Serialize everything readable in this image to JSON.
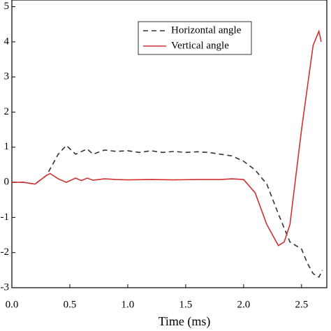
{
  "chart_data": {
    "type": "line",
    "xlabel": "Time (ms)",
    "xlim": [
      0,
      2.7
    ],
    "ylim": [
      -3,
      5.25
    ],
    "xticks": [
      {
        "value": 0,
        "label": "0.0"
      },
      0.5,
      {
        "value": 1,
        "label": "1.0"
      },
      1.5,
      {
        "value": 2,
        "label": "2.0"
      },
      2.5
    ],
    "yticks": [
      -3,
      -2,
      -1,
      0,
      1,
      2,
      3,
      4,
      5
    ],
    "series": [
      {
        "name": "Horizontal angle",
        "color": "#333333",
        "dash": true,
        "x": [
          0,
          0.1,
          0.2,
          0.3,
          0.4,
          0.47,
          0.55,
          0.65,
          0.7,
          0.8,
          0.9,
          1.0,
          1.1,
          1.2,
          1.3,
          1.4,
          1.5,
          1.6,
          1.7,
          1.8,
          1.9,
          2.0,
          2.1,
          2.2,
          2.3,
          2.4,
          2.5,
          2.55,
          2.6,
          2.65,
          2.68
        ],
        "values": [
          0,
          0,
          -0.05,
          0.2,
          0.8,
          1.05,
          0.8,
          0.95,
          0.8,
          0.92,
          0.88,
          0.9,
          0.85,
          0.9,
          0.85,
          0.88,
          0.85,
          0.87,
          0.85,
          0.8,
          0.75,
          0.6,
          0.35,
          -0.05,
          -0.9,
          -1.7,
          -1.9,
          -2.3,
          -2.6,
          -2.7,
          -2.5
        ]
      },
      {
        "name": "Vertical angle",
        "color": "#d03030",
        "dash": false,
        "x": [
          0,
          0.1,
          0.2,
          0.3,
          0.33,
          0.4,
          0.47,
          0.55,
          0.6,
          0.65,
          0.7,
          0.8,
          0.9,
          1.0,
          1.2,
          1.4,
          1.6,
          1.8,
          1.9,
          2.0,
          2.1,
          2.2,
          2.3,
          2.35,
          2.4,
          2.5,
          2.6,
          2.65,
          2.67
        ],
        "values": [
          0,
          0,
          -0.05,
          0.2,
          0.25,
          0.1,
          0,
          0.12,
          0.05,
          0.12,
          0.06,
          0.1,
          0.08,
          0.07,
          0.08,
          0.07,
          0.08,
          0.08,
          0.1,
          0.08,
          -0.3,
          -1.2,
          -1.8,
          -1.7,
          -1.2,
          1.5,
          3.9,
          4.3,
          4.0
        ]
      }
    ]
  }
}
